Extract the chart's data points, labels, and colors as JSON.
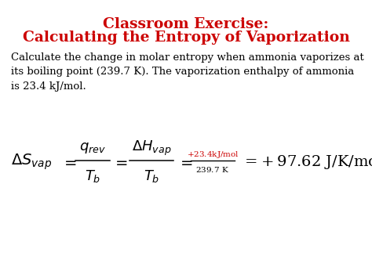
{
  "title_line1": "Classroom Exercise:",
  "title_line2": "Calculating the Entropy of Vaporization",
  "title_color": "#CC0000",
  "body_text": "Calculate the change in molar entropy when ammonia vaporizes at\nits boiling point (239.7 K). The vaporization enthalpy of ammonia\nis 23.4 kJ/mol.",
  "body_color": "#000000",
  "background_color": "#FFFFFF",
  "formula_color": "#000000",
  "fraction_numerator_color": "#CC0000",
  "result_color": "#000000",
  "figsize": [
    4.74,
    3.55
  ],
  "dpi": 100
}
